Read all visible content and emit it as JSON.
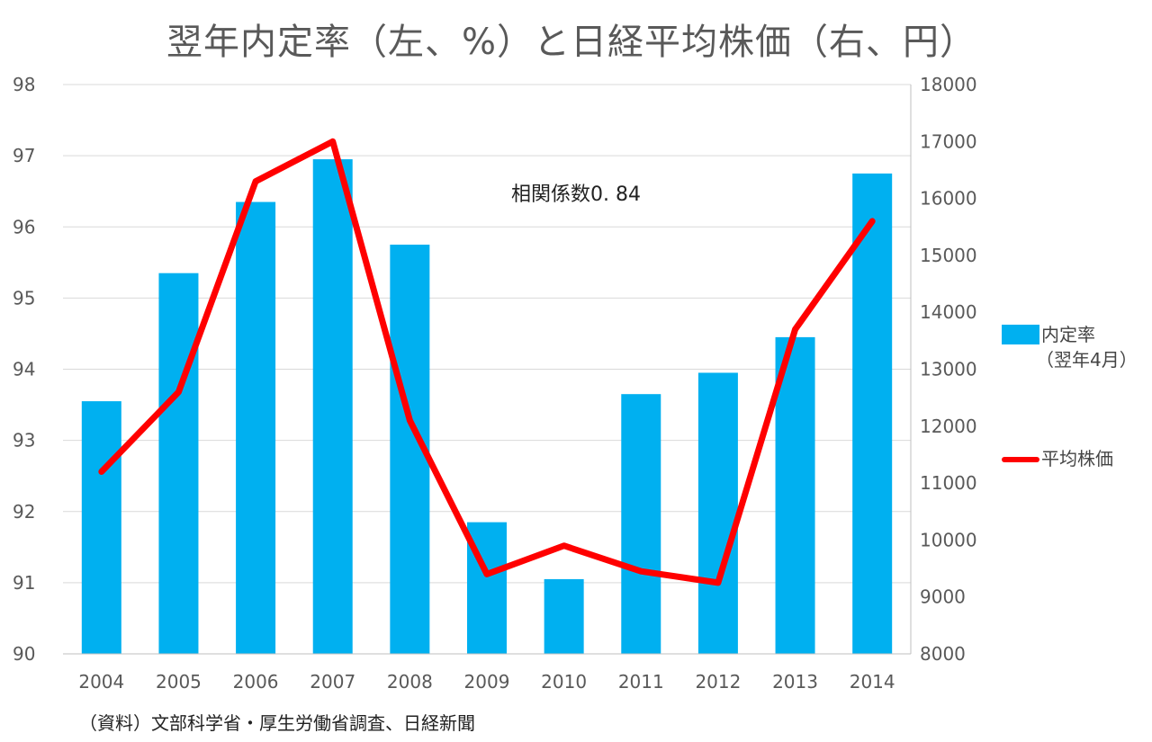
{
  "title": "翌年内定率（左、%）と日経平均株価（右、円）",
  "annotation": "相関係数0. 84",
  "source": "（資料）文部科学省・厚生労働省調査、日経新聞",
  "legend": {
    "bar_label": "内定率",
    "bar_sublabel": "（翌年4月）",
    "line_label": "平均株価"
  },
  "colors": {
    "bar": "#00b0f0",
    "line": "#ff0000",
    "grid": "#d9d9d9",
    "axis": "#bfbfbf",
    "text": "#595959"
  },
  "chart_data": {
    "type": "bar",
    "title": "翌年内定率（左、%）と日経平均株価（右、円）",
    "categories": [
      "2004",
      "2005",
      "2006",
      "2007",
      "2008",
      "2009",
      "2010",
      "2011",
      "2012",
      "2013",
      "2014"
    ],
    "series": [
      {
        "name": "内定率（翌年4月）",
        "type": "bar",
        "axis": "left",
        "values": [
          93.55,
          95.35,
          96.35,
          96.95,
          95.75,
          91.85,
          91.05,
          93.65,
          93.95,
          94.45,
          96.75
        ]
      },
      {
        "name": "平均株価",
        "type": "line",
        "axis": "right",
        "values": [
          11200,
          12600,
          16300,
          17000,
          12100,
          9400,
          9900,
          9450,
          9250,
          13700,
          15600
        ]
      }
    ],
    "y_left": {
      "ylim": [
        90,
        98
      ],
      "ticks": [
        "90",
        "91",
        "92",
        "93",
        "94",
        "95",
        "96",
        "97",
        "98"
      ]
    },
    "y_right": {
      "ylim": [
        8000,
        18000
      ],
      "ticks": [
        "8000",
        "9000",
        "10000",
        "11000",
        "12000",
        "13000",
        "14000",
        "15000",
        "16000",
        "17000",
        "18000"
      ]
    },
    "grid": true,
    "legend_position": "right"
  }
}
